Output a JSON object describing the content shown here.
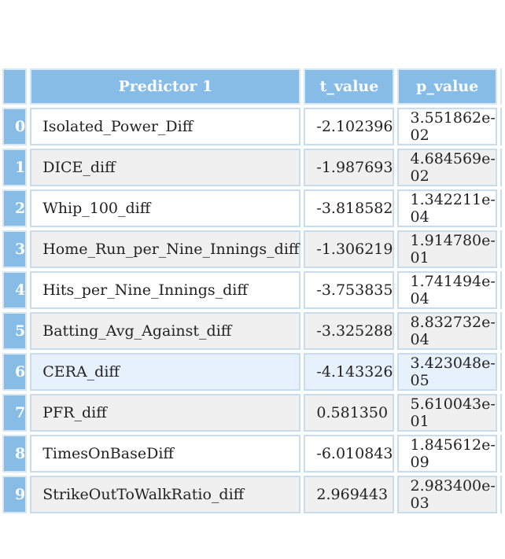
{
  "table": {
    "columns": [
      "",
      "Predictor 1",
      "t_value",
      "p_value"
    ],
    "rows": [
      {
        "index": "0",
        "predictor": "Isolated_Power_Diff",
        "t_value": "-2.102396",
        "p_value": "3.551862e-02"
      },
      {
        "index": "1",
        "predictor": "DICE_diff",
        "t_value": "-1.987693",
        "p_value": "4.684569e-02"
      },
      {
        "index": "2",
        "predictor": "Whip_100_diff",
        "t_value": "-3.818582",
        "p_value": "1.342211e-04"
      },
      {
        "index": "3",
        "predictor": "Home_Run_per_Nine_Innings_diff",
        "t_value": "-1.306219",
        "p_value": "1.914780e-01"
      },
      {
        "index": "4",
        "predictor": "Hits_per_Nine_Innings_diff",
        "t_value": "-3.753835",
        "p_value": "1.741494e-04"
      },
      {
        "index": "5",
        "predictor": "Batting_Avg_Against_diff",
        "t_value": "-3.325288",
        "p_value": "8.832732e-04"
      },
      {
        "index": "6",
        "predictor": "CERA_diff",
        "t_value": "-4.143326",
        "p_value": "3.423048e-05"
      },
      {
        "index": "7",
        "predictor": "PFR_diff",
        "t_value": "0.581350",
        "p_value": "5.610043e-01"
      },
      {
        "index": "8",
        "predictor": "TimesOnBaseDiff",
        "t_value": "-6.010843",
        "p_value": "1.845612e-09"
      },
      {
        "index": "9",
        "predictor": "StrikeOutToWalkRatio_diff",
        "t_value": "2.969443",
        "p_value": "2.983400e-03"
      }
    ],
    "highlighted_row": 6
  },
  "colors": {
    "header_bg": "#87bce6",
    "header_text": "#ffffff",
    "row_odd": "#ffffff",
    "row_even": "#f0f0f0",
    "row_highlight": "#e6f1fc"
  }
}
